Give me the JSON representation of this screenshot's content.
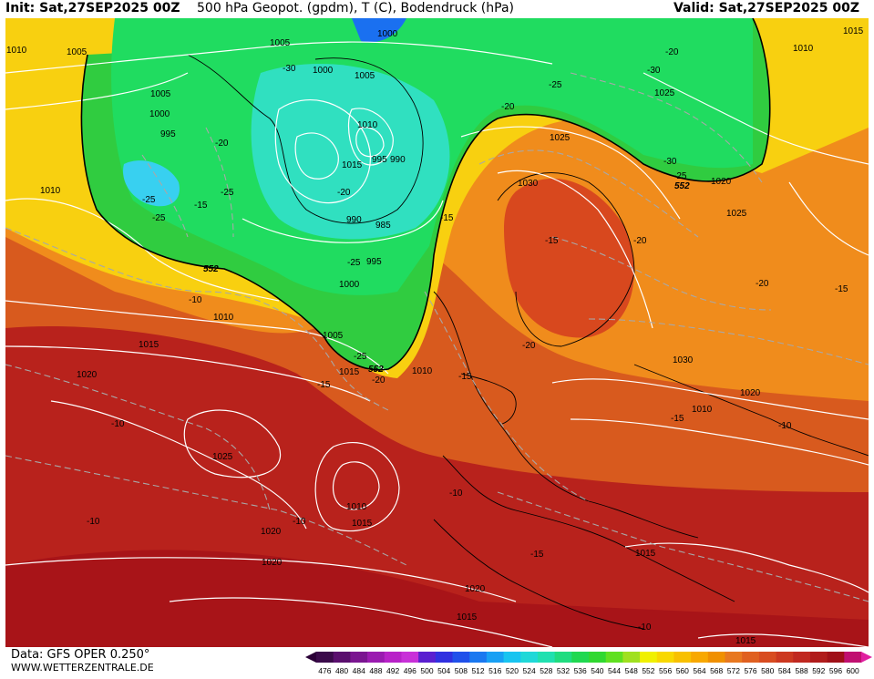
{
  "header": {
    "init": "Init: Sat,27SEP2025 00Z",
    "title": "500 hPa Geopot. (gpdm), T (C), Bodendruck (hPa)",
    "valid": "Valid: Sat,27SEP2025 00Z"
  },
  "footer": {
    "data_source": "Data: GFS OPER 0.250°",
    "website": "WWW.WETTERZENTRALE.DE"
  },
  "colorbar": {
    "labels": [
      "476",
      "480",
      "484",
      "488",
      "492",
      "496",
      "500",
      "504",
      "508",
      "512",
      "516",
      "520",
      "524",
      "528",
      "532",
      "536",
      "540",
      "544",
      "548",
      "552",
      "556",
      "560",
      "564",
      "568",
      "572",
      "576",
      "580",
      "584",
      "588",
      "592",
      "596",
      "600"
    ],
    "colors": [
      "#3a0a4a",
      "#5a0f6e",
      "#7a1590",
      "#9a1bb0",
      "#b822c8",
      "#c830d8",
      "#5a1fd0",
      "#3030e0",
      "#2050ea",
      "#1a78f0",
      "#18a0f4",
      "#18c4f0",
      "#20d8d8",
      "#20e0b0",
      "#20dc80",
      "#20d850",
      "#30d830",
      "#60e020",
      "#a0e020",
      "#f0f000",
      "#f8d800",
      "#f8c000",
      "#f8a800",
      "#f09000",
      "#e87820",
      "#e06020",
      "#d84c20",
      "#cc3820",
      "#c02820",
      "#b01c1c",
      "#a01018",
      "#c01070"
    ]
  },
  "map": {
    "pressure_labels": [
      "1005",
      "1000",
      "1005",
      "1010",
      "1010",
      "1005",
      "1000",
      "995",
      "1005",
      "1000",
      "1010",
      "1015",
      "995",
      "990",
      "985",
      "990",
      "995",
      "1000",
      "1025",
      "1030",
      "1025",
      "1020",
      "1010",
      "1015",
      "1010",
      "1015",
      "1005",
      "1010",
      "1015",
      "1020",
      "1025",
      "1020",
      "1025",
      "1030",
      "1020",
      "1015",
      "1010",
      "1015",
      "1020",
      "1020",
      "1015",
      "1015",
      "1010"
    ],
    "temperature_labels": [
      "-30",
      "-25",
      "-30",
      "-20",
      "-25",
      "-25",
      "-15",
      "-20",
      "-15",
      "-25",
      "-20",
      "-10",
      "-15",
      "-25",
      "-20",
      "-15",
      "-20",
      "-25",
      "-10",
      "-10",
      "-10",
      "-10",
      "-10",
      "-20",
      "-15",
      "-15",
      "-10",
      "-15",
      "-15",
      "-20",
      "-20",
      "-30",
      "-25"
    ],
    "geopotential_labels": [
      "552",
      "552",
      "552"
    ]
  }
}
